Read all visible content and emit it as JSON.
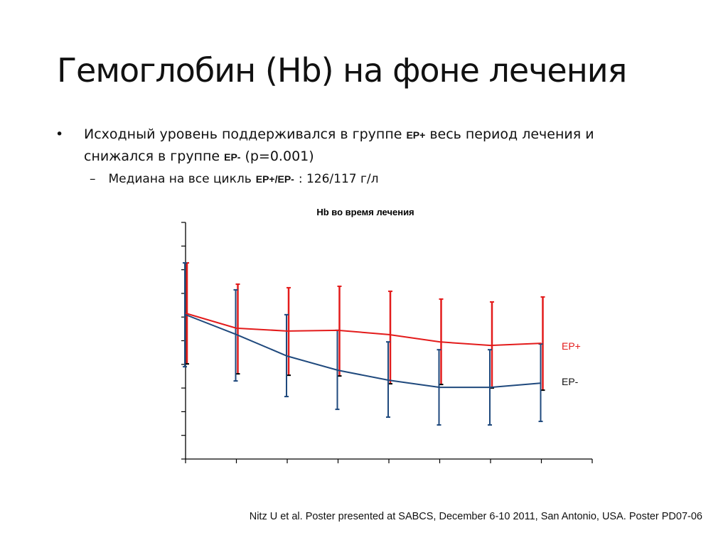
{
  "slide": {
    "title": "Гемоглобин (Hb) на фоне лечения",
    "bullet1_part1": "Исходный уровень поддерживался в группе",
    "bullet1_tag1": "EP+",
    "bullet1_part2": "весь период лечения и снижался в группе",
    "bullet1_tag2": "EP-",
    "bullet1_part3": "(p=0.001)",
    "bullet_symbol": "•",
    "sub_dash": "–",
    "sub_part1": "Медиана на все цикль",
    "sub_tag": "EP+/EP-",
    "sub_part2": ": 126/117 г/л",
    "footer": "Nitz U et al. Poster presented at SABCS, December 6-10 2011, San Antonio, USA. Poster PD07-06"
  },
  "chart_data": {
    "type": "line",
    "title": "Hb во время лечения",
    "xlabel": "",
    "ylabel": "",
    "x": [
      1,
      2,
      3,
      4,
      5,
      6,
      7,
      8
    ],
    "xlim": [
      1,
      9
    ],
    "ylim": [
      0,
      10
    ],
    "y_tick_count": 11,
    "tick_labels_shown": false,
    "grid": false,
    "series": [
      {
        "name": "EP+",
        "color": "#e31b1b",
        "values": [
          6.16,
          5.53,
          5.41,
          5.44,
          5.26,
          4.95,
          4.8,
          4.89
        ],
        "upper": [
          8.29,
          7.39,
          7.24,
          7.3,
          7.09,
          6.76,
          6.64,
          6.85
        ],
        "lower": [
          4.02,
          3.6,
          3.54,
          3.51,
          3.18,
          3.15,
          3.0,
          2.91
        ]
      },
      {
        "name": "EP-",
        "color": "#1f497d",
        "values": [
          6.1,
          5.26,
          4.35,
          3.75,
          3.33,
          3.03,
          3.03,
          3.21
        ],
        "upper": [
          8.29,
          7.15,
          6.1,
          5.44,
          4.95,
          4.62,
          4.62,
          4.86
        ],
        "lower": [
          3.9,
          3.3,
          2.64,
          2.1,
          1.77,
          1.44,
          1.44,
          1.59
        ]
      }
    ],
    "legend": [
      {
        "label": "EP+",
        "color": "#e31b1b",
        "placement": "right"
      },
      {
        "label": "EP-",
        "color": "#111111",
        "placement": "right"
      }
    ]
  }
}
